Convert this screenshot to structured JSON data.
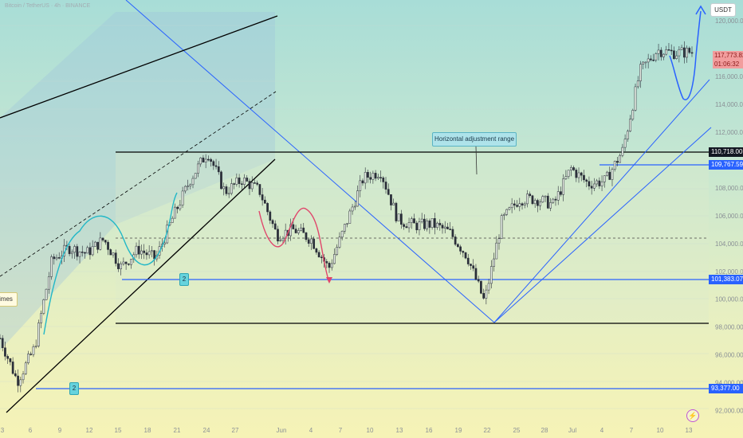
{
  "header": {
    "symbol": "Bitcoin / TetherUS · 4h · BINANCE"
  },
  "currency_button": "USDT",
  "price_axis": {
    "ticks": [
      "120,000.00",
      "116,000.00",
      "114,000.00",
      "112,000.00",
      "108,000.00",
      "106,000.00",
      "104,000.00",
      "102,000.00",
      "100,000.00",
      "98,000.00",
      "96,000.00",
      "94,000.00",
      "92,000.00"
    ]
  },
  "price_tags": {
    "current_price": "117,773.82",
    "countdown": "01:06:32",
    "range_top": "110,718.00",
    "level_109": "109,767.59",
    "level_101": "101,383.07",
    "level_93": "93,377.00"
  },
  "time_axis": {
    "ticks": [
      "3",
      "6",
      "9",
      "12",
      "15",
      "18",
      "21",
      "24",
      "27",
      "Jun",
      "4",
      "7",
      "10",
      "13",
      "16",
      "19",
      "22",
      "25",
      "28",
      "Jul",
      "4",
      "7",
      "10",
      "13"
    ]
  },
  "annotations": {
    "range_note": "Horizontal adjustment range",
    "left_note": "imes",
    "marker_1": "2",
    "marker_2": "2"
  },
  "colors": {
    "up_candle": "#2a2e39",
    "channel_line": "#000000",
    "blue_line": "#2962ff",
    "teal_curve": "#22b8c7",
    "red_curve": "#e0466b",
    "projection_arrow": "#2962ff"
  },
  "chart_data": {
    "type": "candlestick",
    "ylim": [
      91000,
      121500
    ],
    "levels": [
      110718,
      109767.59,
      104550,
      101383.07,
      98200,
      93377
    ],
    "close_path": [
      {
        "x": "3",
        "y": 97200
      },
      {
        "x": "6",
        "y": 94100
      },
      {
        "x": "7",
        "y": 96500
      },
      {
        "x": "9",
        "y": 102800
      },
      {
        "x": "11",
        "y": 103700
      },
      {
        "x": "12",
        "y": 103300
      },
      {
        "x": "14",
        "y": 104300
      },
      {
        "x": "15",
        "y": 102300
      },
      {
        "x": "17",
        "y": 103600
      },
      {
        "x": "19",
        "y": 102900
      },
      {
        "x": "20",
        "y": 105900
      },
      {
        "x": "21",
        "y": 108600
      },
      {
        "x": "22",
        "y": 110600
      },
      {
        "x": "24",
        "y": 107700
      },
      {
        "x": "26",
        "y": 108600
      },
      {
        "x": "28",
        "y": 107800
      },
      {
        "x": "Jun 1",
        "y": 104600
      },
      {
        "x": "Jun 3",
        "y": 105000
      },
      {
        "x": "Jun 5",
        "y": 104300
      },
      {
        "x": "Jun 6",
        "y": 102200
      },
      {
        "x": "Jun 8",
        "y": 105400
      },
      {
        "x": "Jun 9",
        "y": 108700
      },
      {
        "x": "Jun 11",
        "y": 109200
      },
      {
        "x": "Jun 13",
        "y": 105700
      },
      {
        "x": "Jun 15",
        "y": 105300
      },
      {
        "x": "Jun 17",
        "y": 105400
      },
      {
        "x": "Jun 19",
        "y": 104800
      },
      {
        "x": "Jun 21",
        "y": 103100
      },
      {
        "x": "Jun 22",
        "y": 99800
      },
      {
        "x": "Jun 24",
        "y": 105600
      },
      {
        "x": "Jun 26",
        "y": 107200
      },
      {
        "x": "Jun 28",
        "y": 107200
      },
      {
        "x": "Jul 1",
        "y": 106800
      },
      {
        "x": "Jul 3",
        "y": 109400
      },
      {
        "x": "Jul 5",
        "y": 108300
      },
      {
        "x": "Jul 7",
        "y": 108500
      },
      {
        "x": "Jul 9",
        "y": 110700
      },
      {
        "x": "Jul 10",
        "y": 116400
      },
      {
        "x": "Jul 11",
        "y": 117900
      },
      {
        "x": "Jul 12",
        "y": 117700
      },
      {
        "x": "Jul 13",
        "y": 117773.82
      }
    ]
  }
}
